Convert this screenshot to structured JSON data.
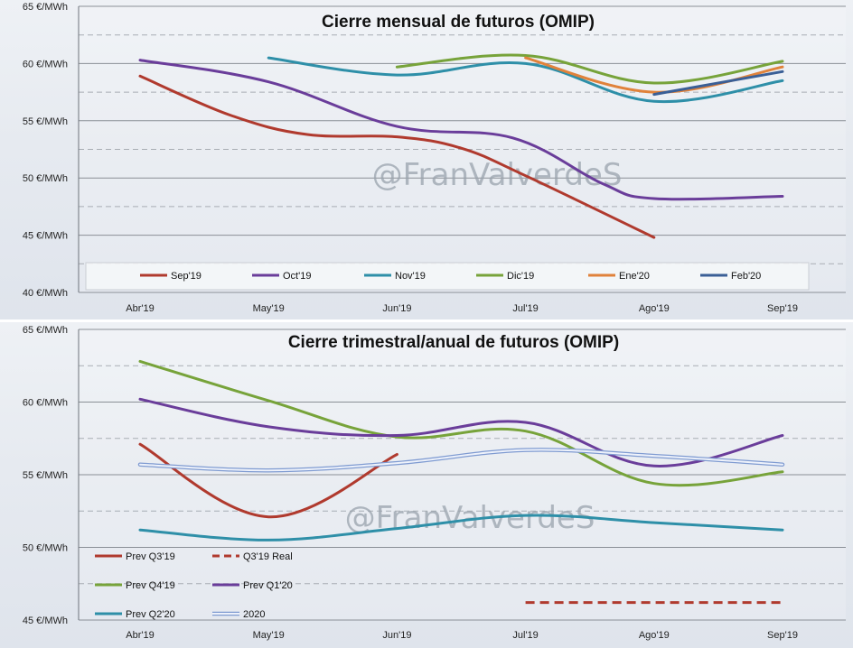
{
  "watermark": "@FranValverdeS",
  "chart_data": [
    {
      "type": "line",
      "title": "Cierre mensual de futuros (OMIP)",
      "categories": [
        "Abr'19",
        "May'19",
        "Jun'19",
        "Jul'19",
        "Ago'19",
        "Sep'19"
      ],
      "ylim": [
        40,
        65
      ],
      "yticks": [
        40,
        45,
        50,
        55,
        60,
        65
      ],
      "ytick_suffix": " €/MWh",
      "grid": "dashed horizontal every 2.5 €/MWh",
      "legend_position": "bottom",
      "series": [
        {
          "name": "Sep'19",
          "color": "#b03a2e",
          "dashed": false,
          "points": [
            [
              0,
              58.9
            ],
            [
              0.7,
              55.5
            ],
            [
              1.3,
              53.8
            ],
            [
              2,
              53.6
            ],
            [
              2.5,
              52.6
            ],
            [
              3,
              50.2
            ],
            [
              4,
              44.8
            ]
          ]
        },
        {
          "name": "Oct'19",
          "color": "#6a3d9a",
          "dashed": false,
          "points": [
            [
              0,
              60.3
            ],
            [
              1,
              58.4
            ],
            [
              2,
              54.5
            ],
            [
              2.9,
              53.5
            ],
            [
              3.6,
              49.5
            ],
            [
              4,
              48.2
            ],
            [
              5,
              48.4
            ]
          ]
        },
        {
          "name": "Nov'19",
          "color": "#2e8fa8",
          "dashed": false,
          "points": [
            [
              1,
              60.5
            ],
            [
              2,
              59.0
            ],
            [
              3,
              60.0
            ],
            [
              4,
              56.7
            ],
            [
              5,
              58.5
            ]
          ]
        },
        {
          "name": "Dic'19",
          "color": "#77a33a",
          "dashed": false,
          "points": [
            [
              2,
              59.7
            ],
            [
              3,
              60.7
            ],
            [
              4,
              58.3
            ],
            [
              5,
              60.2
            ]
          ]
        },
        {
          "name": "Ene'20",
          "color": "#e0823b",
          "dashed": false,
          "points": [
            [
              3,
              60.5
            ],
            [
              4,
              57.5
            ],
            [
              5,
              59.7
            ]
          ]
        },
        {
          "name": "Feb'20",
          "color": "#3a5f96",
          "dashed": false,
          "points": [
            [
              4,
              57.3
            ],
            [
              5,
              59.3
            ]
          ]
        }
      ]
    },
    {
      "type": "line",
      "title": "Cierre trimestral/anual de futuros (OMIP)",
      "categories": [
        "Abr'19",
        "May'19",
        "Jun'19",
        "Jul'19",
        "Ago'19",
        "Sep'19"
      ],
      "ylim": [
        45,
        65
      ],
      "yticks": [
        45,
        50,
        55,
        60,
        65
      ],
      "ytick_suffix": " €/MWh",
      "grid": "dashed horizontal every 2.5 €/MWh",
      "legend_position": "left",
      "series": [
        {
          "name": "Prev Q3'19",
          "color": "#b03a2e",
          "dashed": false,
          "points": [
            [
              0,
              57.1
            ],
            [
              1,
              52.1
            ],
            [
              2,
              56.4
            ]
          ]
        },
        {
          "name": "Q3'19 Real",
          "color": "#b03a2e",
          "dashed": true,
          "points": [
            [
              3,
              46.2
            ],
            [
              5,
              46.2
            ]
          ]
        },
        {
          "name": "Prev Q4'19",
          "color": "#77a33a",
          "dashed": false,
          "points": [
            [
              0,
              62.8
            ],
            [
              1,
              60.1
            ],
            [
              2,
              57.6
            ],
            [
              3,
              58.0
            ],
            [
              4,
              54.4
            ],
            [
              5,
              55.2
            ]
          ]
        },
        {
          "name": "Prev Q1'20",
          "color": "#6a3d9a",
          "dashed": false,
          "points": [
            [
              0,
              60.2
            ],
            [
              1,
              58.3
            ],
            [
              2,
              57.7
            ],
            [
              3,
              58.6
            ],
            [
              4,
              55.6
            ],
            [
              5,
              57.7
            ]
          ]
        },
        {
          "name": "Prev Q2'20",
          "color": "#2e8fa8",
          "dashed": false,
          "points": [
            [
              0,
              51.2
            ],
            [
              1,
              50.5
            ],
            [
              2,
              51.3
            ],
            [
              3,
              52.2
            ],
            [
              4,
              51.7
            ],
            [
              5,
              51.2
            ]
          ]
        },
        {
          "name": "2020",
          "color": "#b8c8e8",
          "dashed": false,
          "double": true,
          "points": [
            [
              0,
              55.7
            ],
            [
              1,
              55.3
            ],
            [
              2,
              55.8
            ],
            [
              3,
              56.7
            ],
            [
              4,
              56.3
            ],
            [
              5,
              55.7
            ]
          ]
        }
      ]
    }
  ]
}
